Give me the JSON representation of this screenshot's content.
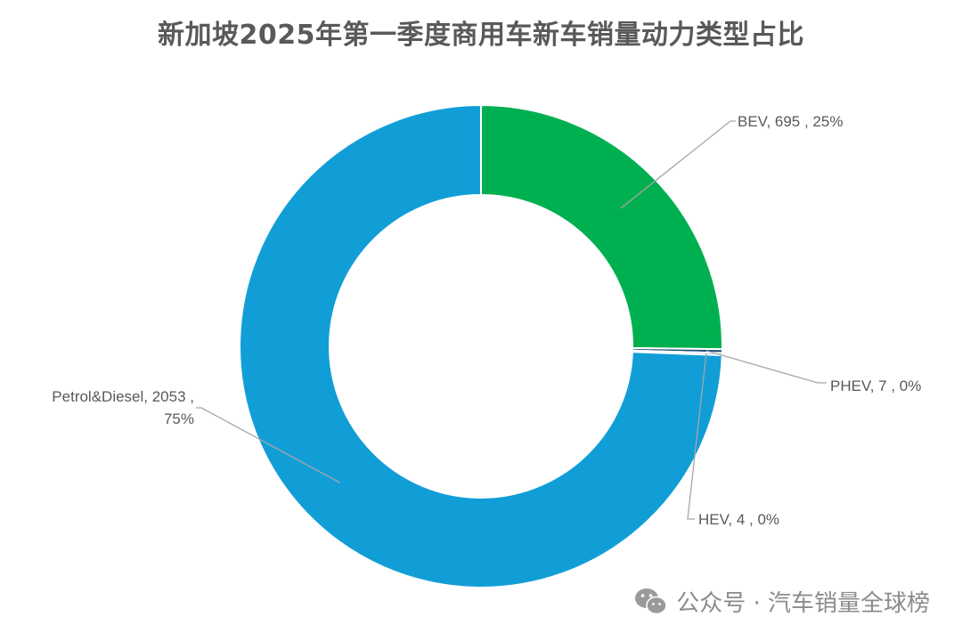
{
  "chart_data": {
    "type": "pie",
    "variant": "donut",
    "title": "新加坡2025年第一季度商用车新车销量动力类型占比",
    "categories": [
      "BEV",
      "PHEV",
      "HEV",
      "Petrol&Diesel"
    ],
    "values": [
      695,
      7,
      4,
      2053
    ],
    "percent_labels": [
      "25%",
      "0%",
      "0%",
      "75%"
    ],
    "labels": [
      [
        "BEV, 695 , 25%"
      ],
      [
        "PHEV, 7 , 0%"
      ],
      [
        "HEV, 4 , 0%"
      ],
      [
        "Petrol&Diesel, 2053 ,",
        "75%"
      ]
    ],
    "colors": [
      "#00b050",
      "#1f4e79",
      "#2e75b6",
      "#119ed7"
    ],
    "legend": "none"
  },
  "watermark": {
    "icon": "wechat-icon",
    "text": "公众号 · 汽车销量全球榜"
  }
}
